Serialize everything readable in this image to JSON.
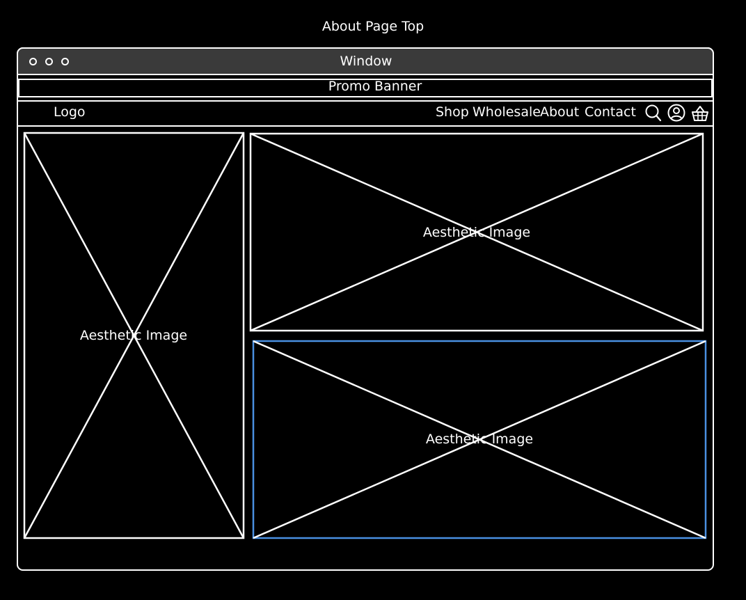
{
  "page": {
    "title": "About Page Top"
  },
  "window": {
    "title": "Window",
    "controls": [
      "circle-button",
      "circle-button",
      "circle-button"
    ]
  },
  "promo_banner": {
    "label": "Promo Banner"
  },
  "navbar": {
    "logo": "Logo",
    "links": [
      "Shop",
      "Wholesale",
      "About",
      "Contact"
    ],
    "icons": [
      "search-icon",
      "account-icon",
      "basket-icon"
    ]
  },
  "images": [
    {
      "label": "Aesthetic Image"
    },
    {
      "label": "Aesthetic Image"
    },
    {
      "label": "Aesthetic Image",
      "selected": true
    }
  ],
  "colors": {
    "background": "#000000",
    "stroke": "#ffffff",
    "selection": "#4a90e2",
    "titlebar": "#3a3a3a"
  }
}
